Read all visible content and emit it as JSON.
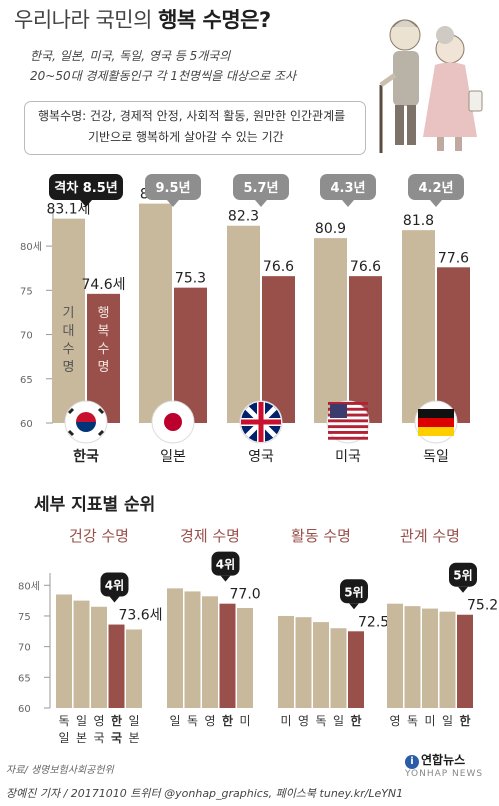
{
  "header": {
    "title_prefix": "우리나라 국민의 ",
    "title_bold": "행복 수명은?",
    "subtitle_line1": "한국, 일본, 미국, 독일, 영국 등 5개국의",
    "subtitle_line2": "20~50대 경제활동인구 각 1천명씩을 대상으로 조사",
    "definition_line1": "행복수명: 건강, 경제적 안정, 사회적 활동, 원만한 인간관계를",
    "definition_line2": "기반으로 행복하게 살아갈 수 있는 기간"
  },
  "colors": {
    "life": "#c9b99c",
    "happy": "#99504a",
    "gap_dark": "#1a1a1a",
    "gap_gray": "#8e8e8e"
  },
  "chart_data": [
    {
      "type": "bar",
      "categories": [
        "한국",
        "일본",
        "영국",
        "미국",
        "독일"
      ],
      "series": [
        {
          "name": "기대수명",
          "values": [
            83.1,
            84.8,
            82.3,
            80.9,
            81.8
          ]
        },
        {
          "name": "행복수명",
          "values": [
            74.6,
            75.3,
            76.6,
            76.6,
            77.6
          ]
        }
      ],
      "value_labels_life": [
        "83.1세",
        "84.8",
        "82.3",
        "80.9",
        "81.8"
      ],
      "value_labels_happy": [
        "74.6세",
        "75.3",
        "76.6",
        "76.6",
        "77.6"
      ],
      "gaps": [
        "격차 8.5년",
        "9.5년",
        "5.7년",
        "4.3년",
        "4.2년"
      ],
      "flags": [
        "korea-flag",
        "japan-flag",
        "uk-flag",
        "usa-flag",
        "germany-flag"
      ],
      "yticks": [
        "80세",
        "75",
        "70",
        "65",
        "60"
      ],
      "ylim": [
        60,
        86
      ],
      "bar_label_life": [
        "기",
        "대",
        "수",
        "명"
      ],
      "bar_label_happy": [
        "행",
        "복",
        "수",
        "명"
      ]
    },
    {
      "type": "bar",
      "title": "세부 지표별 순위",
      "yticks": [
        "80세",
        "75",
        "70",
        "65",
        "60"
      ],
      "ylim": [
        60,
        82
      ],
      "panels": [
        {
          "name": "건강 수명",
          "categories": [
            [
              "독",
              "일"
            ],
            [
              "일",
              "본"
            ],
            [
              "영",
              "국"
            ],
            [
              "한",
              "국"
            ],
            [
              "일",
              "본"
            ]
          ],
          "values": [
            78.5,
            77.5,
            76.5,
            73.6,
            72.8
          ],
          "highlight": 3,
          "rank": "4위",
          "value_label": "73.6세"
        },
        {
          "name": "경제 수명",
          "categories": [
            [
              "일"
            ],
            [
              "독"
            ],
            [
              "영"
            ],
            [
              "한"
            ],
            [
              "미"
            ]
          ],
          "values": [
            79.5,
            79.0,
            78.2,
            77.0,
            76.3
          ],
          "highlight": 3,
          "rank": "4위",
          "value_label": "77.0"
        },
        {
          "name": "활동 수명",
          "categories": [
            [
              "미"
            ],
            [
              "영"
            ],
            [
              "독"
            ],
            [
              "일"
            ],
            [
              "한"
            ]
          ],
          "values": [
            75.0,
            74.8,
            74.0,
            73.0,
            72.5
          ],
          "highlight": 4,
          "rank": "5위",
          "value_label": "72.5"
        },
        {
          "name": "관계 수명",
          "categories": [
            [
              "영"
            ],
            [
              "독"
            ],
            [
              "미"
            ],
            [
              "일"
            ],
            [
              "한"
            ]
          ],
          "values": [
            77.0,
            76.6,
            76.2,
            75.7,
            75.2
          ],
          "highlight": 4,
          "rank": "5위",
          "value_label": "75.2"
        }
      ]
    }
  ],
  "footer": {
    "source": "자료/ 생명보험사회공헌위",
    "credit": "장예진 기자 / 20171010 트위터 @yonhap_graphics, 페이스북 tuney.kr/LeYN1",
    "logo": "연합뉴스",
    "logo_sub": "YONHAP NEWS"
  }
}
